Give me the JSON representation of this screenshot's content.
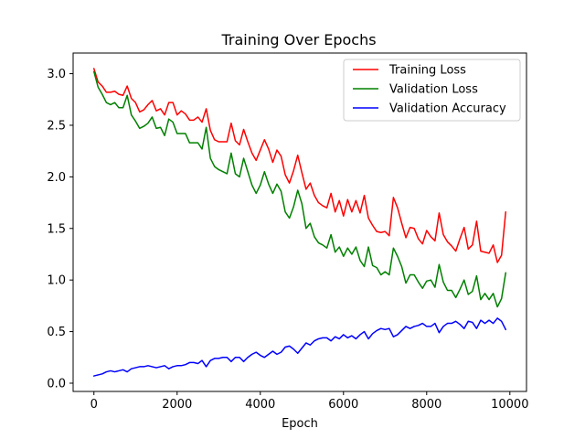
{
  "chart_data": {
    "type": "line",
    "title": "Training Over Epochs",
    "xlabel": "Epoch",
    "ylabel": "",
    "xlim": [
      -500,
      10400
    ],
    "ylim": [
      -0.08,
      3.2
    ],
    "xticks": [
      0,
      2000,
      4000,
      6000,
      8000,
      10000
    ],
    "xtick_labels": [
      "0",
      "2000",
      "4000",
      "6000",
      "8000",
      "10000"
    ],
    "yticks": [
      0.0,
      0.5,
      1.0,
      1.5,
      2.0,
      2.5,
      3.0
    ],
    "ytick_labels": [
      "0.0",
      "0.5",
      "1.0",
      "1.5",
      "2.0",
      "2.5",
      "3.0"
    ],
    "grid": false,
    "legend_position": "top-right",
    "x": [
      0,
      100,
      200,
      300,
      400,
      500,
      600,
      700,
      800,
      900,
      1000,
      1100,
      1200,
      1300,
      1400,
      1500,
      1600,
      1700,
      1800,
      1900,
      2000,
      2100,
      2200,
      2300,
      2400,
      2500,
      2600,
      2700,
      2800,
      2900,
      3000,
      3100,
      3200,
      3300,
      3400,
      3500,
      3600,
      3700,
      3800,
      3900,
      4000,
      4100,
      4200,
      4300,
      4400,
      4500,
      4600,
      4700,
      4800,
      4900,
      5000,
      5100,
      5200,
      5300,
      5400,
      5500,
      5600,
      5700,
      5800,
      5900,
      6000,
      6100,
      6200,
      6300,
      6400,
      6500,
      6600,
      6700,
      6800,
      6900,
      7000,
      7100,
      7200,
      7300,
      7400,
      7500,
      7600,
      7700,
      7800,
      7900,
      8000,
      8100,
      8200,
      8300,
      8400,
      8500,
      8600,
      8700,
      8800,
      8900,
      9000,
      9100,
      9200,
      9300,
      9400,
      9500,
      9600,
      9700,
      9800,
      9900
    ],
    "series": [
      {
        "name": "Training Loss",
        "color": "#ff0000",
        "values": [
          3.05,
          2.92,
          2.88,
          2.82,
          2.82,
          2.83,
          2.8,
          2.79,
          2.88,
          2.76,
          2.72,
          2.63,
          2.65,
          2.7,
          2.74,
          2.64,
          2.66,
          2.6,
          2.72,
          2.72,
          2.6,
          2.64,
          2.61,
          2.55,
          2.55,
          2.58,
          2.53,
          2.66,
          2.45,
          2.36,
          2.34,
          2.34,
          2.34,
          2.52,
          2.35,
          2.31,
          2.46,
          2.34,
          2.23,
          2.16,
          2.26,
          2.36,
          2.27,
          2.14,
          2.26,
          2.2,
          2.02,
          1.94,
          2.06,
          2.21,
          2.04,
          1.88,
          1.94,
          1.82,
          1.75,
          1.72,
          1.7,
          1.84,
          1.66,
          1.77,
          1.62,
          1.78,
          1.66,
          1.77,
          1.65,
          1.82,
          1.6,
          1.53,
          1.47,
          1.46,
          1.47,
          1.43,
          1.8,
          1.7,
          1.55,
          1.41,
          1.51,
          1.5,
          1.4,
          1.35,
          1.48,
          1.42,
          1.38,
          1.65,
          1.44,
          1.37,
          1.33,
          1.28,
          1.4,
          1.51,
          1.3,
          1.34,
          1.57,
          1.28,
          1.27,
          1.26,
          1.34,
          1.17,
          1.24,
          1.66
        ]
      },
      {
        "name": "Validation Loss",
        "color": "#008000",
        "values": [
          3.02,
          2.87,
          2.8,
          2.72,
          2.7,
          2.72,
          2.67,
          2.67,
          2.79,
          2.6,
          2.54,
          2.47,
          2.49,
          2.52,
          2.58,
          2.47,
          2.48,
          2.4,
          2.56,
          2.53,
          2.42,
          2.42,
          2.42,
          2.33,
          2.33,
          2.33,
          2.27,
          2.48,
          2.18,
          2.1,
          2.07,
          2.05,
          2.03,
          2.23,
          2.03,
          2.0,
          2.18,
          2.05,
          1.92,
          1.84,
          1.92,
          2.05,
          1.93,
          1.84,
          1.93,
          1.86,
          1.66,
          1.6,
          1.71,
          1.87,
          1.74,
          1.5,
          1.55,
          1.42,
          1.36,
          1.34,
          1.31,
          1.44,
          1.27,
          1.32,
          1.23,
          1.31,
          1.25,
          1.32,
          1.19,
          1.13,
          1.32,
          1.14,
          1.12,
          1.05,
          1.08,
          1.05,
          1.31,
          1.23,
          1.13,
          0.97,
          1.05,
          1.05,
          0.98,
          0.92,
          0.99,
          1.0,
          0.93,
          1.15,
          0.98,
          0.9,
          0.9,
          0.83,
          0.91,
          1.0,
          0.86,
          0.89,
          1.04,
          0.81,
          0.87,
          0.81,
          0.87,
          0.74,
          0.82,
          1.07
        ]
      },
      {
        "name": "Validation Accuracy",
        "color": "#0000ff",
        "values": [
          0.07,
          0.08,
          0.09,
          0.11,
          0.12,
          0.11,
          0.12,
          0.13,
          0.11,
          0.14,
          0.15,
          0.16,
          0.16,
          0.17,
          0.16,
          0.15,
          0.16,
          0.17,
          0.14,
          0.16,
          0.17,
          0.17,
          0.18,
          0.2,
          0.2,
          0.19,
          0.22,
          0.16,
          0.22,
          0.24,
          0.24,
          0.25,
          0.25,
          0.21,
          0.25,
          0.25,
          0.21,
          0.25,
          0.28,
          0.3,
          0.27,
          0.25,
          0.28,
          0.31,
          0.28,
          0.3,
          0.35,
          0.36,
          0.33,
          0.29,
          0.34,
          0.39,
          0.37,
          0.41,
          0.43,
          0.44,
          0.44,
          0.41,
          0.45,
          0.43,
          0.47,
          0.44,
          0.46,
          0.43,
          0.47,
          0.5,
          0.43,
          0.48,
          0.51,
          0.53,
          0.52,
          0.53,
          0.45,
          0.47,
          0.51,
          0.55,
          0.53,
          0.55,
          0.56,
          0.58,
          0.55,
          0.55,
          0.58,
          0.49,
          0.55,
          0.58,
          0.58,
          0.6,
          0.57,
          0.53,
          0.6,
          0.59,
          0.53,
          0.61,
          0.58,
          0.61,
          0.58,
          0.63,
          0.6,
          0.52
        ]
      }
    ]
  },
  "colors": {
    "background": "#ffffff",
    "axes": "#000000"
  }
}
